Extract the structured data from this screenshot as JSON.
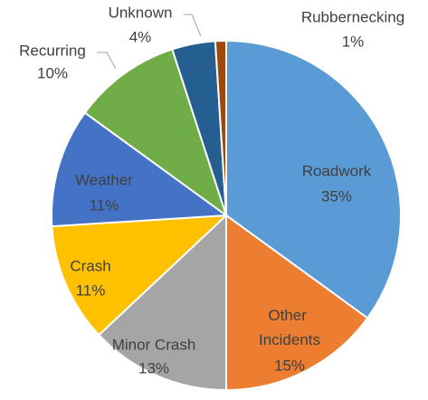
{
  "chart_data": {
    "type": "pie",
    "categories": [
      "Roadwork",
      "Other Incidents",
      "Minor Crash",
      "Crash",
      "Weather",
      "Recurring",
      "Unknown",
      "Rubbernecking"
    ],
    "values": [
      35,
      15,
      13,
      11,
      11,
      10,
      4,
      1
    ],
    "value_labels": [
      "35%",
      "15%",
      "13%",
      "11%",
      "11%",
      "10%",
      "4%",
      "1%"
    ],
    "colors": [
      "#5b9bd5",
      "#ed7d31",
      "#a5a5a5",
      "#ffc000",
      "#4472c4",
      "#70ad47",
      "#255e91",
      "#9e480e"
    ]
  }
}
